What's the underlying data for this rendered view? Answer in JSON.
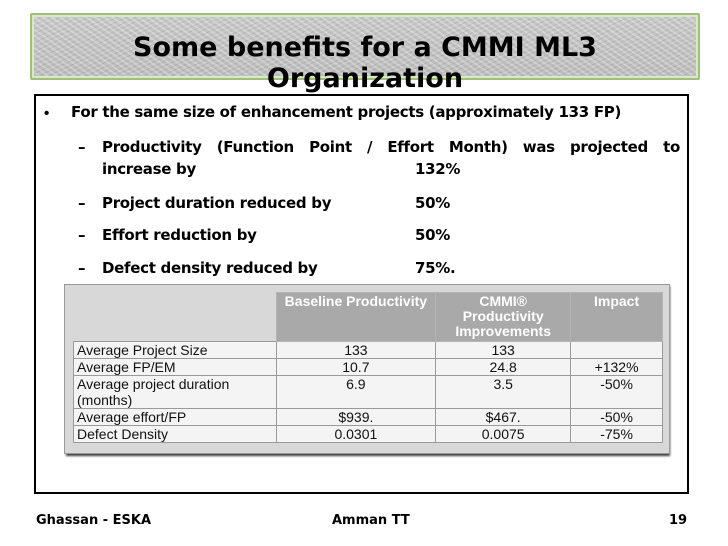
{
  "title": "Some benefits for a CMMI ML3 Organization",
  "bullet": {
    "marker": "•",
    "text": "For the same size of enhancement projects (approximately 133 FP)"
  },
  "subpoints": [
    {
      "dash": "–",
      "label_line1": "Productivity (Function Point / Effort Month) was projected to",
      "label_line2": "increase by",
      "value": "132%"
    },
    {
      "dash": "–",
      "label": "Project duration reduced by",
      "value": "50%"
    },
    {
      "dash": "–",
      "label": "Effort reduction by",
      "value": "50%"
    },
    {
      "dash": "–",
      "label": "Defect density reduced by",
      "value": "75%."
    }
  ],
  "table": {
    "headers": [
      "Baseline Productivity",
      "CMMI® Productivity Improvements",
      "Impact"
    ],
    "rows": [
      {
        "metric": "Average Project Size",
        "baseline": "133",
        "cmmi": "133",
        "impact": ""
      },
      {
        "metric": "Average FP/EM",
        "baseline": "10.7",
        "cmmi": "24.8",
        "impact": "+132%"
      },
      {
        "metric": "Average project duration (months)",
        "baseline": "6.9",
        "cmmi": "3.5",
        "impact": "-50%"
      },
      {
        "metric": "Average effort/FP",
        "baseline": "$939.",
        "cmmi": "$467.",
        "impact": "-50%"
      },
      {
        "metric": "Defect Density",
        "baseline": "0.0301",
        "cmmi": "0.0075",
        "impact": "-75%"
      }
    ]
  },
  "footer": {
    "left": "Ghassan - ESKA",
    "center": "Amman TT",
    "page": "19"
  }
}
